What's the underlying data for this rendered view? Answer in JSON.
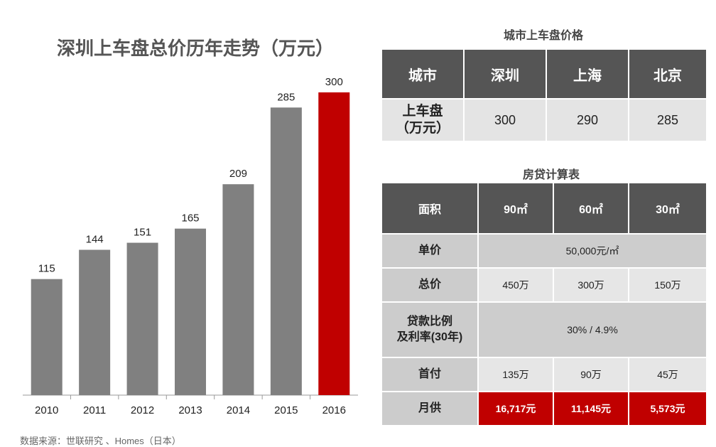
{
  "chart_data": {
    "type": "bar",
    "title": "深圳上车盘总价历年走势（万元）",
    "categories": [
      "2010",
      "2011",
      "2012",
      "2013",
      "2014",
      "2015",
      "2016"
    ],
    "values": [
      115,
      144,
      151,
      165,
      209,
      285,
      300
    ],
    "highlight_index": 6,
    "colors": {
      "default": "#808080",
      "highlight": "#c00000"
    },
    "xlabel": "",
    "ylabel": "",
    "ylim": [
      0,
      300
    ]
  },
  "source": "数据来源：世联研究 、Homes（日本）",
  "city_table": {
    "title": "城市上车盘价格",
    "headers": [
      "城市",
      "深圳",
      "上海",
      "北京"
    ],
    "row_label_line1": "上车盘",
    "row_label_line2": "（万元）",
    "values": [
      "300",
      "290",
      "285"
    ]
  },
  "mortgage_table": {
    "title": "房贷计算表",
    "headers": {
      "area": "面积",
      "c1": "90㎡",
      "c2": "60㎡",
      "c3": "30㎡"
    },
    "unit_price": {
      "label": "单价",
      "value": "50,000元/㎡"
    },
    "total_price": {
      "label": "总价",
      "values": [
        "450万",
        "300万",
        "150万"
      ]
    },
    "loan": {
      "label_line1": "贷款比例",
      "label_line2": "及利率(30年)",
      "value": "30% / 4.9%"
    },
    "down_payment": {
      "label": "首付",
      "values": [
        "135万",
        "90万",
        "45万"
      ]
    },
    "monthly": {
      "label": "月供",
      "values": [
        "16,717元",
        "11,145元",
        "5,573元"
      ]
    }
  }
}
